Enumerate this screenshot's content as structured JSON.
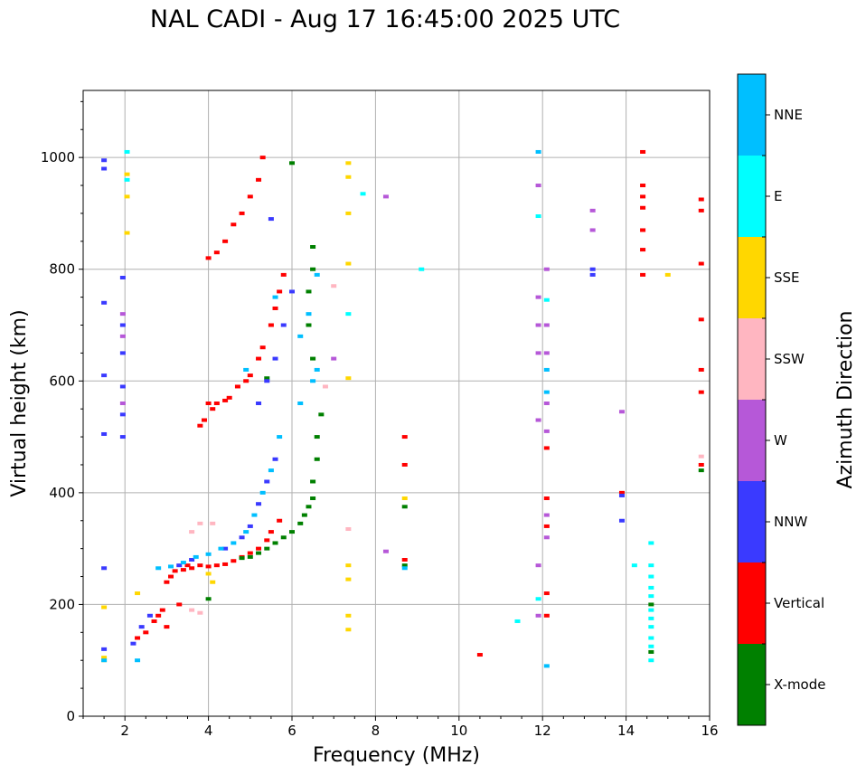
{
  "chart_data": {
    "type": "scatter",
    "title": "NAL CADI - Aug 17 16:45:00 2025 UTC",
    "xlabel": "Frequency (MHz)",
    "ylabel": "Virtual height (km)",
    "xlim": [
      1,
      16
    ],
    "ylim": [
      0,
      1120
    ],
    "xticks": [
      2,
      4,
      6,
      8,
      10,
      12,
      14,
      16
    ],
    "yticks": [
      0,
      200,
      400,
      600,
      800,
      1000
    ],
    "grid": true,
    "colorbar": {
      "label": "Azimuth Direction",
      "categories": [
        {
          "name": "X-mode",
          "color": "#008000"
        },
        {
          "name": "Vertical",
          "color": "#ff0000"
        },
        {
          "name": "NNW",
          "color": "#3a3aff"
        },
        {
          "name": "W",
          "color": "#b658d8"
        },
        {
          "name": "SSW",
          "color": "#ffb6c1"
        },
        {
          "name": "SSE",
          "color": "#ffd700"
        },
        {
          "name": "E",
          "color": "#00ffff"
        },
        {
          "name": "NNE",
          "color": "#00bfff"
        }
      ]
    },
    "series": [
      {
        "name": "Vertical",
        "points": [
          [
            2.3,
            140
          ],
          [
            2.5,
            150
          ],
          [
            2.7,
            170
          ],
          [
            2.8,
            180
          ],
          [
            2.9,
            190
          ],
          [
            3.0,
            240
          ],
          [
            3.1,
            250
          ],
          [
            3.2,
            260
          ],
          [
            3.4,
            262
          ],
          [
            3.6,
            265
          ],
          [
            3.8,
            270
          ],
          [
            4.0,
            268
          ],
          [
            4.2,
            270
          ],
          [
            4.4,
            272
          ],
          [
            4.6,
            278
          ],
          [
            4.8,
            285
          ],
          [
            5.0,
            292
          ],
          [
            5.2,
            300
          ],
          [
            5.4,
            315
          ],
          [
            5.5,
            330
          ],
          [
            5.7,
            350
          ],
          [
            3.0,
            160
          ],
          [
            3.3,
            200
          ],
          [
            3.5,
            270
          ],
          [
            4.0,
            560
          ],
          [
            4.2,
            560
          ],
          [
            4.4,
            565
          ],
          [
            4.5,
            570
          ],
          [
            4.7,
            590
          ],
          [
            4.9,
            600
          ],
          [
            5.0,
            610
          ],
          [
            5.2,
            640
          ],
          [
            5.3,
            660
          ],
          [
            5.5,
            700
          ],
          [
            5.6,
            730
          ],
          [
            5.7,
            760
          ],
          [
            5.8,
            790
          ],
          [
            3.8,
            520
          ],
          [
            3.9,
            530
          ],
          [
            4.1,
            550
          ],
          [
            4.0,
            820
          ],
          [
            4.2,
            830
          ],
          [
            4.4,
            850
          ],
          [
            4.6,
            880
          ],
          [
            4.8,
            900
          ],
          [
            5.0,
            930
          ],
          [
            5.2,
            960
          ],
          [
            5.3,
            1000
          ],
          [
            14.4,
            1010
          ],
          [
            14.4,
            950
          ],
          [
            14.4,
            930
          ],
          [
            14.4,
            910
          ],
          [
            14.4,
            870
          ],
          [
            14.4,
            835
          ],
          [
            14.4,
            790
          ],
          [
            15.8,
            925
          ],
          [
            15.8,
            905
          ],
          [
            15.8,
            810
          ],
          [
            15.8,
            710
          ],
          [
            15.8,
            620
          ],
          [
            15.8,
            580
          ],
          [
            15.8,
            450
          ],
          [
            13.9,
            400
          ],
          [
            10.5,
            110
          ],
          [
            12.1,
            480
          ],
          [
            12.1,
            390
          ],
          [
            12.1,
            340
          ],
          [
            12.1,
            180
          ],
          [
            8.7,
            280
          ],
          [
            8.7,
            450
          ],
          [
            8.7,
            500
          ],
          [
            12.1,
            220
          ]
        ]
      },
      {
        "name": "X-mode",
        "points": [
          [
            4.8,
            283
          ],
          [
            5.0,
            285
          ],
          [
            5.2,
            292
          ],
          [
            5.4,
            300
          ],
          [
            5.6,
            310
          ],
          [
            5.8,
            320
          ],
          [
            6.0,
            330
          ],
          [
            6.2,
            345
          ],
          [
            6.3,
            360
          ],
          [
            6.4,
            375
          ],
          [
            6.5,
            390
          ],
          [
            6.5,
            420
          ],
          [
            6.6,
            460
          ],
          [
            6.6,
            500
          ],
          [
            6.7,
            540
          ],
          [
            6.5,
            640
          ],
          [
            6.4,
            700
          ],
          [
            6.4,
            760
          ],
          [
            6.5,
            800
          ],
          [
            6.5,
            840
          ],
          [
            6.0,
            990
          ],
          [
            5.4,
            605
          ],
          [
            8.7,
            375
          ],
          [
            8.7,
            270
          ],
          [
            15.8,
            440
          ],
          [
            14.6,
            200
          ],
          [
            14.6,
            115
          ],
          [
            4.0,
            210
          ]
        ]
      },
      {
        "name": "NNW",
        "points": [
          [
            1.5,
            995
          ],
          [
            1.5,
            980
          ],
          [
            1.5,
            740
          ],
          [
            1.5,
            610
          ],
          [
            1.5,
            505
          ],
          [
            1.5,
            265
          ],
          [
            1.5,
            120
          ],
          [
            1.95,
            785
          ],
          [
            1.95,
            700
          ],
          [
            1.95,
            650
          ],
          [
            1.95,
            590
          ],
          [
            1.95,
            540
          ],
          [
            1.95,
            500
          ],
          [
            2.2,
            130
          ],
          [
            2.4,
            160
          ],
          [
            2.6,
            180
          ],
          [
            3.3,
            270
          ],
          [
            3.6,
            280
          ],
          [
            4.4,
            300
          ],
          [
            4.8,
            320
          ],
          [
            5.0,
            340
          ],
          [
            5.2,
            380
          ],
          [
            5.4,
            420
          ],
          [
            5.6,
            460
          ],
          [
            5.2,
            560
          ],
          [
            5.4,
            600
          ],
          [
            5.6,
            640
          ],
          [
            5.8,
            700
          ],
          [
            6.0,
            760
          ],
          [
            5.5,
            890
          ],
          [
            13.2,
            800
          ],
          [
            13.2,
            790
          ],
          [
            13.9,
            350
          ],
          [
            13.9,
            395
          ]
        ]
      },
      {
        "name": "W",
        "points": [
          [
            1.95,
            720
          ],
          [
            1.95,
            680
          ],
          [
            1.95,
            560
          ],
          [
            8.25,
            930
          ],
          [
            8.25,
            295
          ],
          [
            13.2,
            905
          ],
          [
            13.2,
            870
          ],
          [
            13.9,
            545
          ],
          [
            12.1,
            800
          ],
          [
            12.1,
            700
          ],
          [
            12.1,
            650
          ],
          [
            12.1,
            560
          ],
          [
            12.1,
            510
          ],
          [
            12.1,
            360
          ],
          [
            12.1,
            320
          ],
          [
            11.9,
            950
          ],
          [
            11.9,
            750
          ],
          [
            11.9,
            700
          ],
          [
            11.9,
            650
          ],
          [
            11.9,
            530
          ],
          [
            11.9,
            270
          ],
          [
            11.9,
            180
          ],
          [
            7.0,
            640
          ]
        ]
      },
      {
        "name": "SSW",
        "points": [
          [
            3.6,
            330
          ],
          [
            3.8,
            345
          ],
          [
            4.1,
            345
          ],
          [
            3.6,
            190
          ],
          [
            3.8,
            185
          ],
          [
            15.8,
            465
          ],
          [
            7.0,
            770
          ],
          [
            6.8,
            590
          ],
          [
            7.35,
            335
          ]
        ]
      },
      {
        "name": "SSE",
        "points": [
          [
            2.05,
            970
          ],
          [
            2.05,
            930
          ],
          [
            2.05,
            865
          ],
          [
            1.5,
            195
          ],
          [
            1.5,
            105
          ],
          [
            1.5,
            100
          ],
          [
            2.3,
            220
          ],
          [
            4.1,
            240
          ],
          [
            4.0,
            255
          ],
          [
            7.35,
            990
          ],
          [
            7.35,
            965
          ],
          [
            7.35,
            900
          ],
          [
            7.35,
            810
          ],
          [
            7.35,
            605
          ],
          [
            7.35,
            270
          ],
          [
            7.35,
            245
          ],
          [
            7.35,
            180
          ],
          [
            7.35,
            155
          ],
          [
            15.0,
            790
          ],
          [
            8.7,
            390
          ]
        ]
      },
      {
        "name": "E",
        "points": [
          [
            2.05,
            1010
          ],
          [
            2.05,
            960
          ],
          [
            7.7,
            935
          ],
          [
            9.1,
            800
          ],
          [
            7.35,
            720
          ],
          [
            14.6,
            310
          ],
          [
            14.6,
            270
          ],
          [
            14.6,
            250
          ],
          [
            14.6,
            230
          ],
          [
            14.6,
            215
          ],
          [
            14.6,
            190
          ],
          [
            14.6,
            175
          ],
          [
            14.6,
            160
          ],
          [
            14.6,
            140
          ],
          [
            14.6,
            125
          ],
          [
            14.6,
            100
          ],
          [
            14.2,
            270
          ],
          [
            11.4,
            170
          ],
          [
            11.9,
            895
          ],
          [
            11.9,
            210
          ],
          [
            12.1,
            745
          ]
        ]
      },
      {
        "name": "NNE",
        "points": [
          [
            1.5,
            100
          ],
          [
            2.3,
            100
          ],
          [
            2.8,
            265
          ],
          [
            3.1,
            268
          ],
          [
            3.4,
            275
          ],
          [
            3.7,
            285
          ],
          [
            4.0,
            290
          ],
          [
            4.3,
            300
          ],
          [
            4.6,
            310
          ],
          [
            4.9,
            330
          ],
          [
            5.1,
            360
          ],
          [
            5.3,
            400
          ],
          [
            5.5,
            440
          ],
          [
            5.7,
            500
          ],
          [
            6.2,
            560
          ],
          [
            6.5,
            600
          ],
          [
            6.6,
            620
          ],
          [
            6.2,
            680
          ],
          [
            6.4,
            720
          ],
          [
            6.6,
            790
          ],
          [
            5.6,
            750
          ],
          [
            4.9,
            620
          ],
          [
            12.1,
            620
          ],
          [
            12.1,
            580
          ],
          [
            12.1,
            90
          ],
          [
            11.9,
            1010
          ],
          [
            8.7,
            265
          ]
        ]
      }
    ]
  }
}
